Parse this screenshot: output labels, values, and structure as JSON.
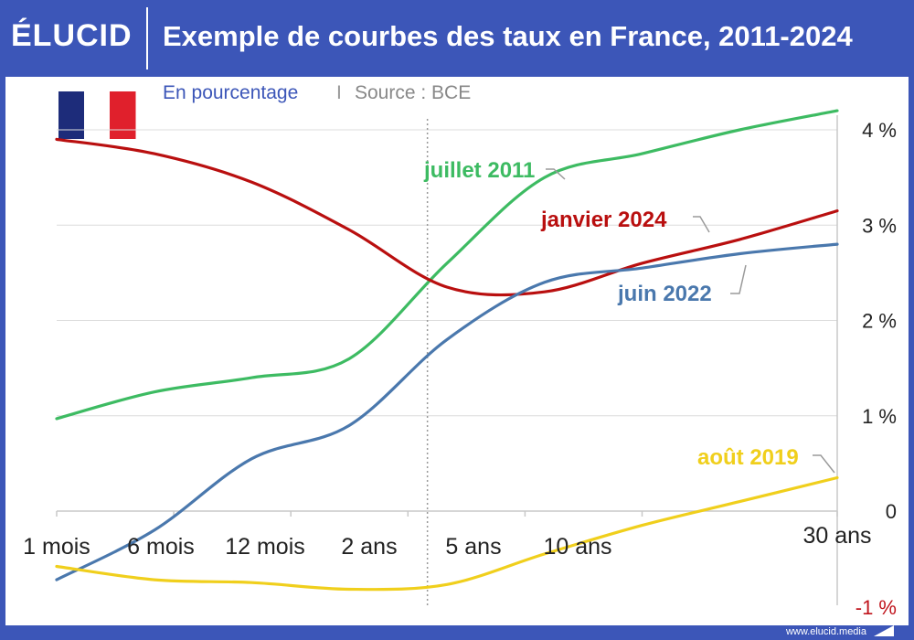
{
  "header": {
    "logo": "ÉLUCID",
    "title": "Exemple de courbes des taux en France, 2011-2024"
  },
  "subtitle": {
    "unit": "En pourcentage",
    "separator": "I",
    "source": "Source : BCE"
  },
  "flag_colors": [
    "#1d2c7a",
    "#ffffff",
    "#e0202c"
  ],
  "footer": {
    "url": "www.elucid.media"
  },
  "chart_data": {
    "type": "line",
    "x_ticks": [
      "1 mois",
      "6 mois",
      "12 mois",
      "2 ans",
      "5 ans",
      "10 ans",
      "30 ans"
    ],
    "y_ticks": [
      {
        "value": 4,
        "label": "4 %"
      },
      {
        "value": 3,
        "label": "3 %"
      },
      {
        "value": 2,
        "label": "2 %"
      },
      {
        "value": 1,
        "label": "1 %"
      },
      {
        "value": 0,
        "label": "0"
      },
      {
        "value": -1,
        "label": "-1 %"
      }
    ],
    "ylim": [
      -1,
      4.2
    ],
    "grid": true,
    "gridline_count": 4,
    "divider_position": 3.8,
    "series": [
      {
        "name": "juillet 2011",
        "color": "#3dbb62",
        "points": [
          [
            0,
            0.97
          ],
          [
            1,
            1.25
          ],
          [
            2,
            1.4
          ],
          [
            3,
            1.6
          ],
          [
            4,
            2.6
          ],
          [
            5,
            3.5
          ],
          [
            6,
            3.75
          ],
          [
            7,
            4.0
          ],
          [
            8,
            4.2
          ]
        ]
      },
      {
        "name": "janvier 2024",
        "color": "#b90f0f",
        "points": [
          [
            0,
            3.9
          ],
          [
            1,
            3.75
          ],
          [
            2,
            3.45
          ],
          [
            3,
            2.95
          ],
          [
            4,
            2.35
          ],
          [
            5,
            2.3
          ],
          [
            6,
            2.6
          ],
          [
            7,
            2.85
          ],
          [
            8,
            3.15
          ]
        ]
      },
      {
        "name": "juin 2022",
        "color": "#4a78ad",
        "points": [
          [
            0,
            -0.72
          ],
          [
            1,
            -0.2
          ],
          [
            2,
            0.55
          ],
          [
            3,
            0.9
          ],
          [
            4,
            1.8
          ],
          [
            5,
            2.4
          ],
          [
            6,
            2.55
          ],
          [
            7,
            2.7
          ],
          [
            8,
            2.8
          ]
        ]
      },
      {
        "name": "août 2019",
        "color": "#f0cf1c",
        "points": [
          [
            0,
            -0.58
          ],
          [
            1,
            -0.72
          ],
          [
            2,
            -0.75
          ],
          [
            3,
            -0.82
          ],
          [
            4,
            -0.77
          ],
          [
            5,
            -0.45
          ],
          [
            6,
            -0.15
          ],
          [
            7,
            0.1
          ],
          [
            8,
            0.35
          ]
        ]
      }
    ]
  }
}
